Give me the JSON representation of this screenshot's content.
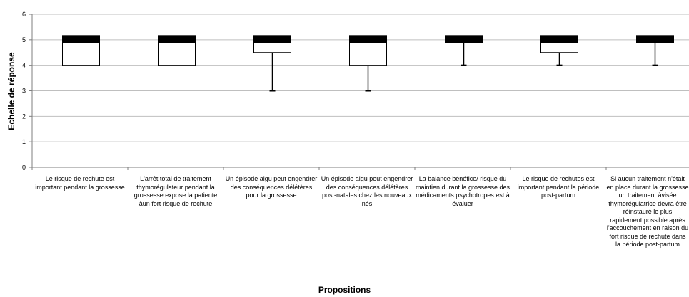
{
  "chart_data": {
    "type": "boxplot",
    "xlabel": "Propositions",
    "ylabel": "Echelle de réponse",
    "ylim": [
      0,
      6
    ],
    "yticks": [
      "0",
      "1",
      "2",
      "3",
      "4",
      "5",
      "6"
    ],
    "grid": true,
    "categories": [
      "Le risque de rechute est important pendant la grossesse",
      "L'arrêt total de traitement thymorégulateur pendant la grossesse expose la patiente àun fort risque de rechute",
      "Un épisode aigu peut engendrer des conséquences délétères pour la grossesse",
      "Un épisode aigu peut engendrer des conséquences délétères post-natales chez les nouveaux nés",
      "La balance bénéfice/ risque du maintien durant la grossesse des médicaments psychotropes est à évaluer",
      "Le risque de rechutes est important pendant la période post-partum",
      "Si aucun traitement n'était en place durant la grossesse un traitement àvisée thymorégulatrice devra être réinstauré le plus rapidement possible après l'accouchement en raison du fort risque de rechute dans la période post-partum"
    ],
    "boxes": [
      {
        "min": 4,
        "q1": 4,
        "median": 5,
        "q3": 5,
        "max": 5
      },
      {
        "min": 4,
        "q1": 4,
        "median": 5,
        "q3": 5,
        "max": 5
      },
      {
        "min": 3,
        "q1": 4.5,
        "median": 5,
        "q3": 5,
        "max": 5
      },
      {
        "min": 3,
        "q1": 4,
        "median": 5,
        "q3": 5,
        "max": 5
      },
      {
        "min": 4,
        "q1": 5,
        "median": 5,
        "q3": 5,
        "max": 5
      },
      {
        "min": 4,
        "q1": 4.5,
        "median": 5,
        "q3": 5,
        "max": 5
      },
      {
        "min": 4,
        "q1": 5,
        "median": 5,
        "q3": 5,
        "max": 5
      }
    ]
  }
}
